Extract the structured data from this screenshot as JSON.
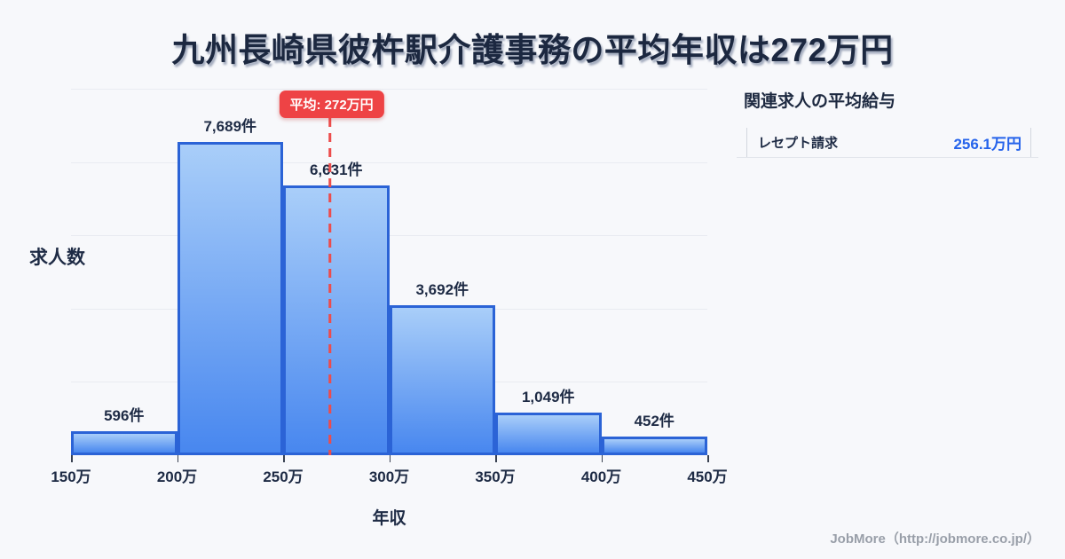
{
  "title": "九州長崎県彼杵駅介護事務の平均年収は272万円",
  "chart_data": {
    "type": "bar",
    "subtype": "histogram",
    "title": "九州長崎県彼杵駅介護事務の平均年収は272万円",
    "xlabel": "年収",
    "ylabel": "求人数",
    "bin_edges": [
      150,
      200,
      250,
      300,
      350,
      400,
      450
    ],
    "bin_edge_labels": [
      "150万",
      "200万",
      "250万",
      "300万",
      "350万",
      "400万",
      "450万"
    ],
    "values": [
      596,
      7689,
      6631,
      3692,
      1049,
      452
    ],
    "bar_labels": [
      "596件",
      "7,689件",
      "6,631件",
      "3,692件",
      "1,049件",
      "452件"
    ],
    "ylim": [
      0,
      9000
    ],
    "grid": "horizontal",
    "gridline_count": 5,
    "mean": {
      "value": 272,
      "label": "平均: 272万円"
    },
    "colors": {
      "bar_fill_top": "#a9cef9",
      "bar_fill_bottom": "#4887ef",
      "bar_border": "#2b63d6",
      "mean_red": "#ee4345",
      "text_dark": "#1e2b45",
      "grid": "#e9ebf1",
      "background": "#f7f8fb"
    }
  },
  "side_panel": {
    "title": "関連求人の平均給与",
    "rows": [
      {
        "label": "レセプト請求",
        "value": "256.1万円",
        "value_color": "#2563eb"
      }
    ]
  },
  "footer": {
    "credit": "JobMore（http://jobmore.co.jp/）"
  }
}
